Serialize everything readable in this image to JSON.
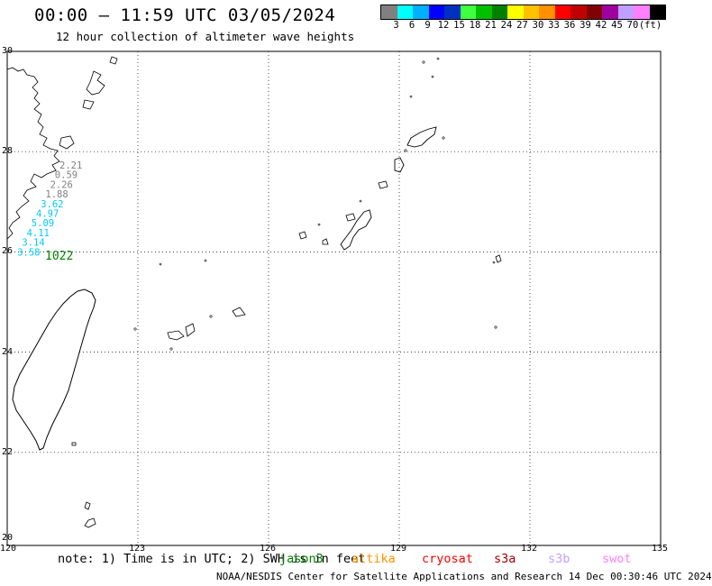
{
  "title": "00:00 – 11:59 UTC 03/05/2024",
  "subtitle": "12 hour collection of altimeter wave heights",
  "legend": {
    "colors": [
      "#808080",
      "#00ffff",
      "#00b0ff",
      "#0000ff",
      "#0030c0",
      "#40ff40",
      "#00c000",
      "#008000",
      "#ffff00",
      "#ffc000",
      "#ff9000",
      "#ff0000",
      "#c00000",
      "#800000",
      "#a000a0",
      "#c0a0ff",
      "#ff80ff",
      "#000000"
    ],
    "labels": [
      "3",
      "6",
      "9",
      "12",
      "15",
      "18",
      "21",
      "24",
      "27",
      "30",
      "33",
      "36",
      "39",
      "42",
      "45",
      "70"
    ],
    "unit": "(ft)"
  },
  "axes": {
    "lon_ticks": [
      "120",
      "123",
      "126",
      "129",
      "132",
      "135"
    ],
    "lat_ticks": [
      "30",
      "28",
      "26",
      "24",
      "22",
      "20"
    ]
  },
  "observations": [
    {
      "text": "2.21",
      "color": "#808080"
    },
    {
      "text": "0.59",
      "color": "#808080"
    },
    {
      "text": "2.26",
      "color": "#808080"
    },
    {
      "text": "1.88",
      "color": "#808080"
    },
    {
      "text": "3.62",
      "color": "#00c8ff"
    },
    {
      "text": "4.97",
      "color": "#00c8ff"
    },
    {
      "text": "5.09",
      "color": "#00c8ff"
    },
    {
      "text": "4.11",
      "color": "#00c8ff"
    },
    {
      "text": "3.14",
      "color": "#00c8ff"
    },
    {
      "text": "3.58",
      "color": "#00c8ff"
    }
  ],
  "pass_label": {
    "text": "1022",
    "color": "#008000"
  },
  "footer": {
    "note": "note: 1) Time is in UTC; 2) SWH is in feet",
    "satellites": [
      {
        "name": "jason3",
        "color": "#008000"
      },
      {
        "name": "altika",
        "color": "#ff9000"
      },
      {
        "name": "cryosat",
        "color": "#ff0000"
      },
      {
        "name": "s3a",
        "color": "#a00000"
      },
      {
        "name": "s3b",
        "color": "#c0a0ff"
      },
      {
        "name": "swot",
        "color": "#ff80ff"
      }
    ],
    "credit": "NOAA/NESDIS Center for Satellite Applications and Research    14 Dec 00:30:46 UTC 2024"
  }
}
